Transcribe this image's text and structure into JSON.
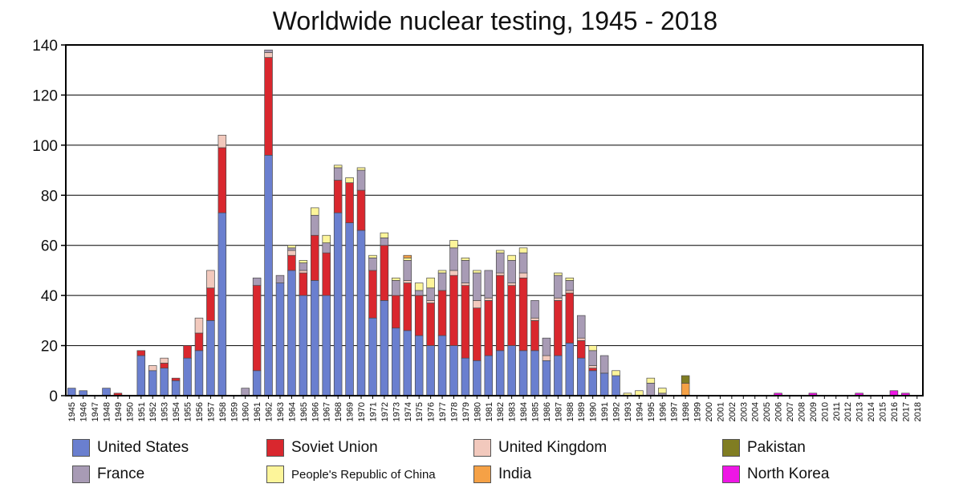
{
  "chart_data": {
    "type": "bar",
    "stacked": true,
    "title": "Worldwide nuclear testing, 1945 - 2018",
    "xlabel": "",
    "ylabel": "",
    "ylim": [
      0,
      140
    ],
    "yticks": [
      0,
      20,
      40,
      60,
      80,
      100,
      120,
      140
    ],
    "grid": true,
    "legend_position": "bottom",
    "categories": [
      "1945",
      "1946",
      "1947",
      "1948",
      "1949",
      "1950",
      "1951",
      "1952",
      "1953",
      "1954",
      "1955",
      "1956",
      "1957",
      "1958",
      "1959",
      "1960",
      "1961",
      "1962",
      "1963",
      "1964",
      "1965",
      "1966",
      "1967",
      "1968",
      "1969",
      "1970",
      "1971",
      "1972",
      "1973",
      "1974",
      "1975",
      "1976",
      "1977",
      "1978",
      "1979",
      "1980",
      "1981",
      "1982",
      "1983",
      "1984",
      "1985",
      "1986",
      "1987",
      "1988",
      "1989",
      "1990",
      "1991",
      "1992",
      "1993",
      "1994",
      "1995",
      "1996",
      "1997",
      "1998",
      "1999",
      "2000",
      "2001",
      "2002",
      "2003",
      "2004",
      "2005",
      "2006",
      "2007",
      "2008",
      "2009",
      "2010",
      "2011",
      "2012",
      "2013",
      "2014",
      "2015",
      "2016",
      "2017",
      "2018"
    ],
    "series": [
      {
        "name": "United States",
        "color": "#6a7fcf",
        "values": [
          3,
          2,
          0,
          3,
          0,
          0,
          16,
          10,
          11,
          6,
          15,
          18,
          30,
          73,
          0,
          0,
          10,
          96,
          45,
          50,
          40,
          46,
          40,
          73,
          69,
          66,
          31,
          38,
          27,
          26,
          24,
          20,
          24,
          20,
          15,
          14,
          16,
          18,
          20,
          18,
          18,
          14,
          16,
          21,
          15,
          10,
          9,
          8,
          0,
          0,
          0,
          0,
          0,
          0,
          0,
          0,
          0,
          0,
          0,
          0,
          0,
          0,
          0,
          0,
          0,
          0,
          0,
          0,
          0,
          0,
          0,
          0,
          0,
          0
        ]
      },
      {
        "name": "Soviet Union",
        "color": "#d9272e",
        "values": [
          0,
          0,
          0,
          0,
          1,
          0,
          2,
          0,
          2,
          1,
          5,
          7,
          13,
          26,
          0,
          0,
          34,
          39,
          0,
          6,
          9,
          18,
          17,
          13,
          16,
          16,
          19,
          22,
          13,
          19,
          16,
          17,
          18,
          28,
          29,
          21,
          22,
          30,
          24,
          29,
          12,
          0,
          22,
          20,
          7,
          1,
          0,
          0,
          0,
          0,
          0,
          0,
          0,
          0,
          0,
          0,
          0,
          0,
          0,
          0,
          0,
          0,
          0,
          0,
          0,
          0,
          0,
          0,
          0,
          0,
          0,
          0,
          0,
          0
        ]
      },
      {
        "name": "United Kingdom",
        "color": "#f2c9bd",
        "values": [
          0,
          0,
          0,
          0,
          0,
          0,
          0,
          2,
          2,
          0,
          0,
          6,
          7,
          5,
          0,
          0,
          0,
          2,
          0,
          2,
          1,
          0,
          0,
          0,
          0,
          0,
          0,
          0,
          0,
          1,
          0,
          1,
          0,
          2,
          1,
          3,
          1,
          1,
          1,
          2,
          1,
          2,
          1,
          1,
          1,
          1,
          0,
          0,
          0,
          0,
          0,
          0,
          0,
          0,
          0,
          0,
          0,
          0,
          0,
          0,
          0,
          0,
          0,
          0,
          0,
          0,
          0,
          0,
          0,
          0,
          0,
          0,
          0,
          0
        ]
      },
      {
        "name": "France",
        "color": "#a89bb5",
        "values": [
          0,
          0,
          0,
          0,
          0,
          0,
          0,
          0,
          0,
          0,
          0,
          0,
          0,
          0,
          0,
          3,
          3,
          1,
          3,
          1,
          3,
          8,
          4,
          5,
          0,
          8,
          5,
          3,
          6,
          8,
          2,
          5,
          7,
          9,
          9,
          11,
          11,
          8,
          9,
          8,
          7,
          7,
          9,
          4,
          9,
          6,
          7,
          0,
          0,
          0,
          5,
          1,
          0,
          0,
          0,
          0,
          0,
          0,
          0,
          0,
          0,
          0,
          0,
          0,
          0,
          0,
          0,
          0,
          0,
          0,
          0,
          0,
          0,
          0
        ]
      },
      {
        "name": "People's Republic of China",
        "color": "#fdf59a",
        "values": [
          0,
          0,
          0,
          0,
          0,
          0,
          0,
          0,
          0,
          0,
          0,
          0,
          0,
          0,
          0,
          0,
          0,
          0,
          0,
          1,
          1,
          3,
          3,
          1,
          2,
          1,
          1,
          2,
          1,
          1,
          3,
          4,
          1,
          3,
          1,
          1,
          0,
          1,
          2,
          2,
          0,
          0,
          1,
          1,
          0,
          2,
          0,
          2,
          1,
          2,
          2,
          2,
          0,
          0,
          0,
          0,
          0,
          0,
          0,
          0,
          0,
          0,
          0,
          0,
          0,
          0,
          0,
          0,
          0,
          0,
          0,
          0,
          0,
          0
        ]
      },
      {
        "name": "India",
        "color": "#f5a146",
        "values": [
          0,
          0,
          0,
          0,
          0,
          0,
          0,
          0,
          0,
          0,
          0,
          0,
          0,
          0,
          0,
          0,
          0,
          0,
          0,
          0,
          0,
          0,
          0,
          0,
          0,
          0,
          0,
          0,
          0,
          1,
          0,
          0,
          0,
          0,
          0,
          0,
          0,
          0,
          0,
          0,
          0,
          0,
          0,
          0,
          0,
          0,
          0,
          0,
          0,
          0,
          0,
          0,
          0,
          5,
          0,
          0,
          0,
          0,
          0,
          0,
          0,
          0,
          0,
          0,
          0,
          0,
          0,
          0,
          0,
          0,
          0,
          0,
          0,
          0
        ]
      },
      {
        "name": "Pakistan",
        "color": "#807d22",
        "values": [
          0,
          0,
          0,
          0,
          0,
          0,
          0,
          0,
          0,
          0,
          0,
          0,
          0,
          0,
          0,
          0,
          0,
          0,
          0,
          0,
          0,
          0,
          0,
          0,
          0,
          0,
          0,
          0,
          0,
          0,
          0,
          0,
          0,
          0,
          0,
          0,
          0,
          0,
          0,
          0,
          0,
          0,
          0,
          0,
          0,
          0,
          0,
          0,
          0,
          0,
          0,
          0,
          0,
          3,
          0,
          0,
          0,
          0,
          0,
          0,
          0,
          0,
          0,
          0,
          0,
          0,
          0,
          0,
          0,
          0,
          0,
          0,
          0,
          0
        ]
      },
      {
        "name": "North Korea",
        "color": "#ee16e5",
        "values": [
          0,
          0,
          0,
          0,
          0,
          0,
          0,
          0,
          0,
          0,
          0,
          0,
          0,
          0,
          0,
          0,
          0,
          0,
          0,
          0,
          0,
          0,
          0,
          0,
          0,
          0,
          0,
          0,
          0,
          0,
          0,
          0,
          0,
          0,
          0,
          0,
          0,
          0,
          0,
          0,
          0,
          0,
          0,
          0,
          0,
          0,
          0,
          0,
          0,
          0,
          0,
          0,
          0,
          0,
          0,
          0,
          0,
          0,
          0,
          0,
          0,
          1,
          0,
          0,
          1,
          0,
          0,
          0,
          1,
          0,
          0,
          2,
          1,
          0
        ]
      }
    ]
  },
  "legend": {
    "items": [
      {
        "label": "United States",
        "color": "#6a7fcf"
      },
      {
        "label": "Soviet Union",
        "color": "#d9272e"
      },
      {
        "label": "United Kingdom",
        "color": "#f2c9bd"
      },
      {
        "label": "Pakistan",
        "color": "#807d22"
      },
      {
        "label": "France",
        "color": "#a89bb5"
      },
      {
        "label": "People's Republic of China",
        "color": "#fdf59a"
      },
      {
        "label": "India",
        "color": "#f5a146"
      },
      {
        "label": "North Korea",
        "color": "#ee16e5"
      }
    ]
  }
}
